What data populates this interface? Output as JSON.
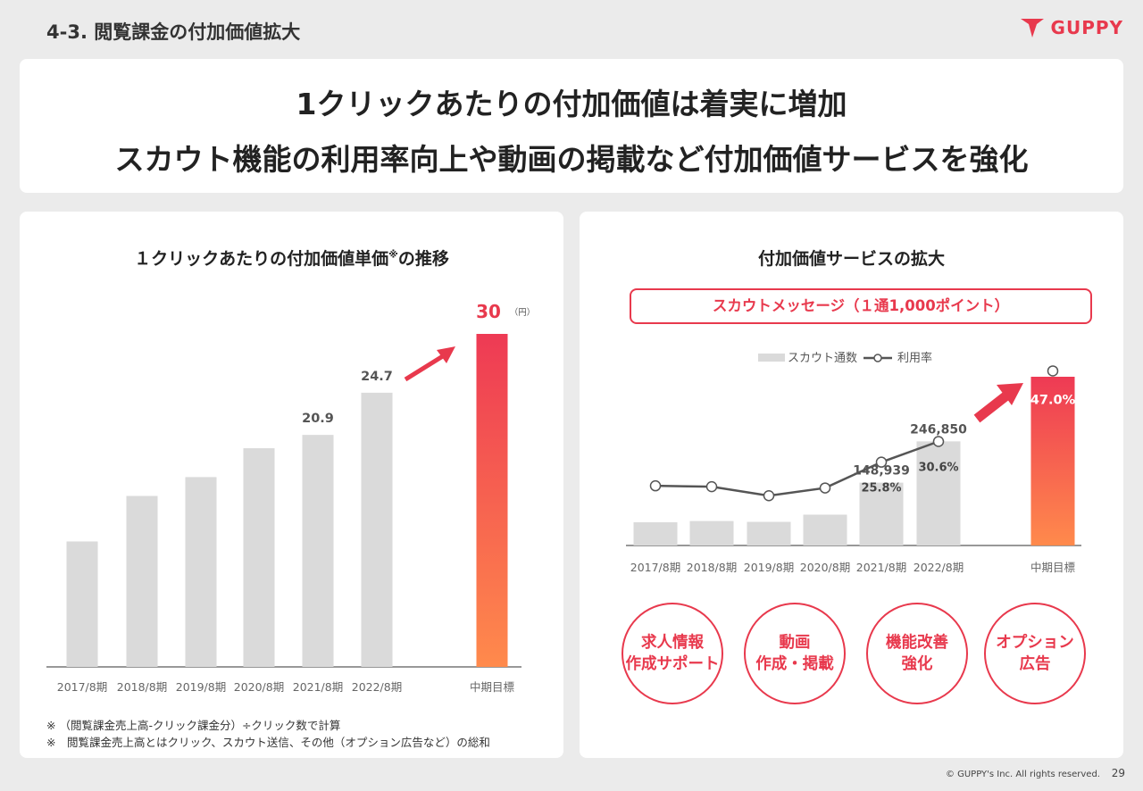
{
  "header": {
    "section_title": "4-3.  閲覧課金の付加価値拡大",
    "logo_text": "GUPPY",
    "brand_color": "#e8394d"
  },
  "headline": {
    "line1": "1クリックあたりの付加価値は着実に増加",
    "line2": "スカウト機能の利用率向上や動画の掲載など付加価値サービスを強化"
  },
  "left_panel": {
    "title": "１クリックあたりの付加価値単価",
    "title_mark": "※",
    "title_suffix": "の推移",
    "notes": [
      "※ （閲覧課金売上高-クリック課金分）÷クリック数で計算",
      "※　閲覧課金売上高とはクリック、スカウト送信、その他（オプション広告など）の総和"
    ]
  },
  "right_panel": {
    "title": "付加価値サービスの拡大",
    "banner": "スカウトメッセージ（１通1,000ポイント）",
    "circles": [
      "求人情報\n作成サポート",
      "動画\n作成・掲載",
      "機能改善\n強化",
      "オプション\n広告"
    ]
  },
  "chart_data": [
    {
      "type": "bar",
      "categories": [
        "2017/8期",
        "2018/8期",
        "2019/8期",
        "2020/8期",
        "2021/8期",
        "2022/8期",
        "中期目標"
      ],
      "values": [
        11.3,
        15.4,
        17.1,
        19.7,
        20.9,
        24.7,
        30
      ],
      "data_labels": [
        "",
        "",
        "",
        "",
        "20.9",
        "24.7",
        "30"
      ],
      "unit_label": "（円）",
      "ylim": [
        0,
        30
      ],
      "bar_color": "#dadada",
      "highlight_gradient": [
        "#ee3a54",
        "#ff8a4c"
      ]
    },
    {
      "type": "bar+line",
      "categories": [
        "2017/8期",
        "2018/8期",
        "2019/8期",
        "2020/8期",
        "2021/8期",
        "2022/8期",
        "中期目標"
      ],
      "series": [
        {
          "name": "スカウト通数",
          "type": "bar",
          "values": [
            55000,
            58000,
            56000,
            73000,
            148939,
            246850,
            400000
          ]
        },
        {
          "name": "利用率",
          "type": "line",
          "values": [
            20.3,
            20.1,
            18.0,
            19.8,
            25.8,
            30.6,
            47.0
          ]
        }
      ],
      "bar_labels": [
        "",
        "",
        "",
        "",
        "148,939",
        "246,850",
        ""
      ],
      "line_labels": [
        "",
        "",
        "",
        "",
        "25.8%",
        "30.6%",
        "47.0%"
      ]
    }
  ],
  "footer": {
    "copyright": "© GUPPY's Inc. All rights reserved.",
    "page": "29"
  }
}
